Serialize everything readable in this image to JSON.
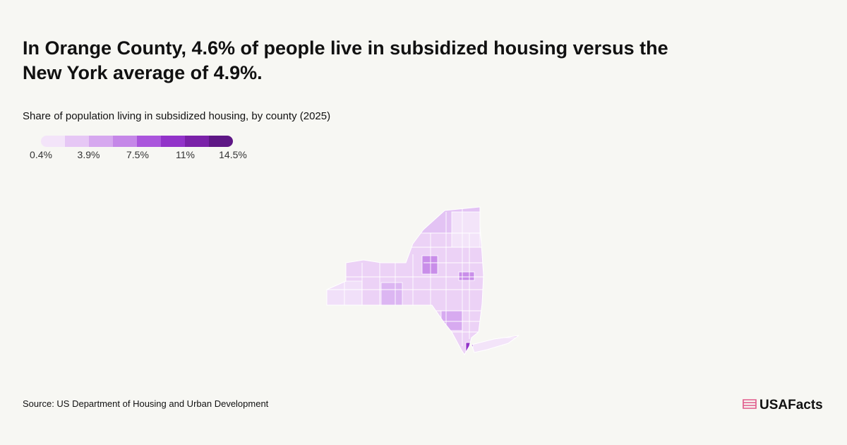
{
  "header": {
    "title": "In Orange County, 4.6% of people live in subsidized housing versus the New York average of 4.9%."
  },
  "legend": {
    "subtitle": "Share of population living in subsidized housing, by county (2025)",
    "colors": [
      "#f3e4f9",
      "#e6c7f5",
      "#d6a8ef",
      "#c587e8",
      "#aa55dc",
      "#9233c9",
      "#7a21a8",
      "#5e1785"
    ],
    "range": [
      0.4,
      14.5
    ],
    "ticks": [
      {
        "value": 0.4,
        "label": "0.4%"
      },
      {
        "value": 3.9,
        "label": "3.9%"
      },
      {
        "value": 7.5,
        "label": "7.5%"
      },
      {
        "value": 11,
        "label": "11%"
      },
      {
        "value": 14.5,
        "label": "14.5%"
      }
    ]
  },
  "footer": {
    "source": "Source: US Department of Housing and Urban Development",
    "logo": "USAFacts"
  }
}
